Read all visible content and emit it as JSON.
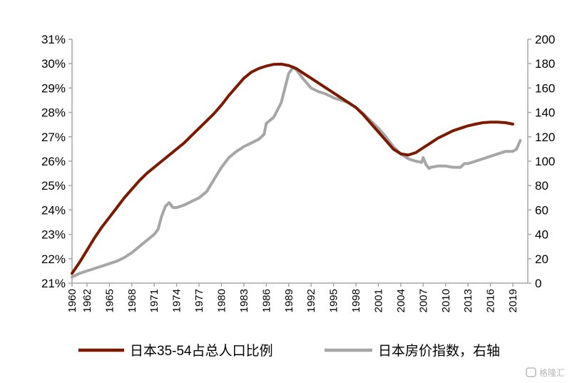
{
  "chart_data": {
    "type": "line",
    "title": "",
    "xlabel": "",
    "ylabel_left": "",
    "ylabel_right": "",
    "x_ticks": [
      "1960",
      "1962",
      "1965",
      "1968",
      "1971",
      "1974",
      "1977",
      "1980",
      "1983",
      "1986",
      "1989",
      "1992",
      "1995",
      "1998",
      "2001",
      "2004",
      "2007",
      "2010",
      "2013",
      "2016",
      "2019"
    ],
    "x_range": [
      1960,
      2021
    ],
    "y_left": {
      "range": [
        21,
        31
      ],
      "ticks": [
        "21%",
        "22%",
        "23%",
        "24%",
        "25%",
        "26%",
        "27%",
        "28%",
        "29%",
        "30%",
        "31%"
      ]
    },
    "y_right": {
      "range": [
        0,
        200
      ],
      "ticks": [
        "0",
        "20",
        "40",
        "60",
        "80",
        "100",
        "120",
        "140",
        "160",
        "180",
        "200"
      ]
    },
    "grid": false,
    "legend_position": "bottom",
    "series": [
      {
        "name": "日本35-54占总人口比例",
        "axis": "left",
        "color": "#7b1a00",
        "points": [
          [
            1960,
            21.4
          ],
          [
            1961,
            21.85
          ],
          [
            1962,
            22.35
          ],
          [
            1963,
            22.85
          ],
          [
            1964,
            23.3
          ],
          [
            1965,
            23.7
          ],
          [
            1966,
            24.1
          ],
          [
            1967,
            24.5
          ],
          [
            1968,
            24.85
          ],
          [
            1969,
            25.2
          ],
          [
            1970,
            25.5
          ],
          [
            1971,
            25.75
          ],
          [
            1972,
            26.0
          ],
          [
            1973,
            26.25
          ],
          [
            1974,
            26.5
          ],
          [
            1975,
            26.75
          ],
          [
            1976,
            27.05
          ],
          [
            1977,
            27.35
          ],
          [
            1978,
            27.65
          ],
          [
            1979,
            27.95
          ],
          [
            1980,
            28.3
          ],
          [
            1981,
            28.7
          ],
          [
            1982,
            29.05
          ],
          [
            1983,
            29.4
          ],
          [
            1984,
            29.65
          ],
          [
            1985,
            29.8
          ],
          [
            1986,
            29.9
          ],
          [
            1987,
            29.97
          ],
          [
            1988,
            29.98
          ],
          [
            1989,
            29.92
          ],
          [
            1990,
            29.8
          ],
          [
            1991,
            29.6
          ],
          [
            1992,
            29.4
          ],
          [
            1993,
            29.2
          ],
          [
            1994,
            29.0
          ],
          [
            1995,
            28.8
          ],
          [
            1996,
            28.6
          ],
          [
            1997,
            28.4
          ],
          [
            1998,
            28.2
          ],
          [
            1999,
            27.9
          ],
          [
            2000,
            27.55
          ],
          [
            2001,
            27.2
          ],
          [
            2002,
            26.85
          ],
          [
            2003,
            26.5
          ],
          [
            2004,
            26.3
          ],
          [
            2005,
            26.25
          ],
          [
            2006,
            26.35
          ],
          [
            2007,
            26.55
          ],
          [
            2008,
            26.75
          ],
          [
            2009,
            26.95
          ],
          [
            2010,
            27.1
          ],
          [
            2011,
            27.25
          ],
          [
            2012,
            27.35
          ],
          [
            2013,
            27.45
          ],
          [
            2014,
            27.52
          ],
          [
            2015,
            27.58
          ],
          [
            2016,
            27.6
          ],
          [
            2017,
            27.6
          ],
          [
            2018,
            27.58
          ],
          [
            2019,
            27.52
          ]
        ]
      },
      {
        "name": "日本房价指数，右轴",
        "axis": "right",
        "color": "#a6a6a6",
        "points": [
          [
            1960,
            5
          ],
          [
            1961,
            8
          ],
          [
            1962,
            10
          ],
          [
            1963,
            12
          ],
          [
            1964,
            14
          ],
          [
            1965,
            16
          ],
          [
            1966,
            18
          ],
          [
            1967,
            21
          ],
          [
            1968,
            25
          ],
          [
            1969,
            30
          ],
          [
            1970,
            35
          ],
          [
            1971,
            40
          ],
          [
            1971.5,
            44
          ],
          [
            1972,
            55
          ],
          [
            1972.5,
            63
          ],
          [
            1973,
            66
          ],
          [
            1973.5,
            62
          ],
          [
            1974,
            62
          ],
          [
            1975,
            64
          ],
          [
            1976,
            67
          ],
          [
            1977,
            70
          ],
          [
            1978,
            75
          ],
          [
            1979,
            85
          ],
          [
            1980,
            95
          ],
          [
            1981,
            103
          ],
          [
            1982,
            108
          ],
          [
            1983,
            112
          ],
          [
            1984,
            115
          ],
          [
            1985,
            118
          ],
          [
            1985.7,
            122
          ],
          [
            1986,
            131
          ],
          [
            1987,
            136
          ],
          [
            1988,
            148
          ],
          [
            1988.5,
            160
          ],
          [
            1989,
            172
          ],
          [
            1989.6,
            177
          ],
          [
            1990,
            175
          ],
          [
            1991,
            167
          ],
          [
            1992,
            160
          ],
          [
            1993,
            157
          ],
          [
            1994,
            155
          ],
          [
            1995,
            152
          ],
          [
            1996,
            150
          ],
          [
            1997,
            148
          ],
          [
            1998,
            144
          ],
          [
            1999,
            139
          ],
          [
            2000,
            133
          ],
          [
            2001,
            127
          ],
          [
            2002,
            120
          ],
          [
            2003,
            112
          ],
          [
            2004,
            106
          ],
          [
            2005,
            102
          ],
          [
            2006,
            100
          ],
          [
            2006.8,
            99
          ],
          [
            2007,
            103
          ],
          [
            2007.4,
            97
          ],
          [
            2007.8,
            94
          ],
          [
            2008,
            95
          ],
          [
            2009,
            96
          ],
          [
            2010,
            96
          ],
          [
            2011,
            95
          ],
          [
            2012,
            95
          ],
          [
            2012.5,
            98
          ],
          [
            2013,
            98
          ],
          [
            2014,
            100
          ],
          [
            2015,
            102
          ],
          [
            2016,
            104
          ],
          [
            2017,
            106
          ],
          [
            2018,
            108
          ],
          [
            2019,
            108
          ],
          [
            2019.5,
            110
          ],
          [
            2020,
            117
          ]
        ]
      }
    ]
  },
  "watermark": "格隆汇"
}
